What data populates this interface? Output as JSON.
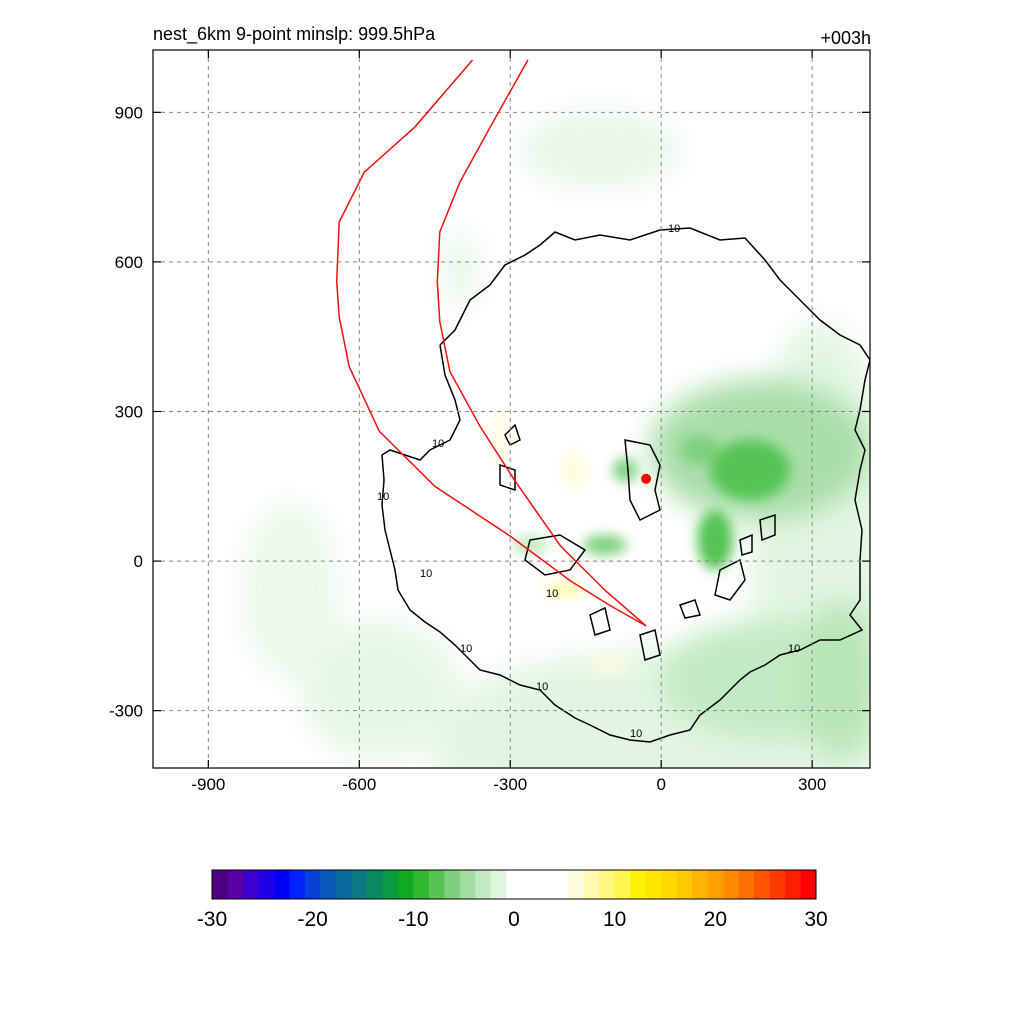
{
  "chart_data": {
    "type": "contour",
    "title": "nest_6km  9-point minslp: 999.5hPa",
    "forecast_hour": "+003h",
    "x_ticks": [
      -900,
      -600,
      -300,
      0,
      300
    ],
    "y_ticks": [
      -300,
      0,
      300,
      600,
      900
    ],
    "xlim": [
      -1010,
      415
    ],
    "ylim": [
      -415,
      1025
    ],
    "grid": true,
    "contour_label": "10",
    "storm_center": {
      "x": -30,
      "y": 165
    },
    "track_curves": [
      [
        [
          -375,
          1005
        ],
        [
          -490,
          870
        ],
        [
          -590,
          780
        ],
        [
          -640,
          680
        ],
        [
          -645,
          560
        ],
        [
          -640,
          490
        ],
        [
          -620,
          390
        ],
        [
          -560,
          260
        ],
        [
          -450,
          150
        ],
        [
          -300,
          50
        ],
        [
          -180,
          -40
        ],
        [
          -100,
          -90
        ],
        [
          -30,
          -130
        ]
      ],
      [
        [
          -265,
          1005
        ],
        [
          -340,
          870
        ],
        [
          -400,
          760
        ],
        [
          -440,
          660
        ],
        [
          -445,
          560
        ],
        [
          -440,
          480
        ],
        [
          -420,
          380
        ],
        [
          -360,
          270
        ],
        [
          -290,
          160
        ],
        [
          -200,
          30
        ],
        [
          -110,
          -60
        ],
        [
          -30,
          -130
        ]
      ]
    ],
    "colorbar": {
      "ticks": [
        -30,
        -20,
        -10,
        0,
        10,
        20,
        30
      ],
      "min": -30,
      "max": 30,
      "colors": [
        "#4b0082",
        "#5a00a5",
        "#3d00cc",
        "#2200e5",
        "#0000f5",
        "#0022ff",
        "#0a40d8",
        "#0a58b8",
        "#0a6aa0",
        "#0a7a80",
        "#0a8860",
        "#0a9a40",
        "#11aa22",
        "#30b830",
        "#55c455",
        "#7dd07d",
        "#a2dea2",
        "#c3ebc3",
        "#dff5df",
        "#ffffff",
        "#ffffff",
        "#ffffff",
        "#ffffff",
        "#fffce0",
        "#fffab0",
        "#fff880",
        "#fff550",
        "#fff200",
        "#ffe600",
        "#ffd800",
        "#ffc800",
        "#ffb400",
        "#ff9f00",
        "#ff8a00",
        "#ff7000",
        "#ff5500",
        "#ff3a00",
        "#ff1e00",
        "#ff0000"
      ]
    }
  }
}
